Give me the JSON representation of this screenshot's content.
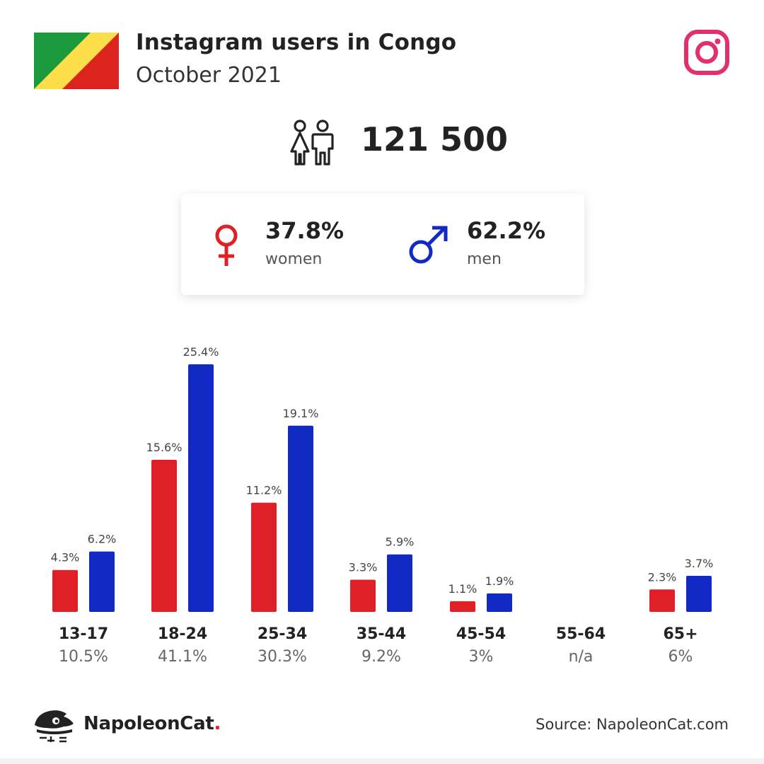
{
  "header": {
    "title": "Instagram users in Congo",
    "subtitle": "October 2021"
  },
  "summary": {
    "total_users": "121 500",
    "women_pct": "37.8%",
    "women_label": "women",
    "men_pct": "62.2%",
    "men_label": "men"
  },
  "colors": {
    "women": "#e02027",
    "men": "#102ac3",
    "instagram": "#e1306c",
    "flag_green": "#1a9a3c",
    "flag_yellow": "#fbde4a",
    "flag_red": "#dc241f"
  },
  "chart_data": {
    "type": "bar",
    "categories": [
      "13-17",
      "18-24",
      "25-34",
      "35-44",
      "45-54",
      "55-64",
      "65+"
    ],
    "category_totals": [
      "10.5%",
      "41.1%",
      "30.3%",
      "9.2%",
      "3%",
      "n/a",
      "6%"
    ],
    "series": [
      {
        "name": "women",
        "values": [
          4.3,
          15.6,
          11.2,
          3.3,
          1.1,
          null,
          2.3
        ],
        "labels": [
          "4.3%",
          "15.6%",
          "11.2%",
          "3.3%",
          "1.1%",
          "",
          "2.3%"
        ],
        "color": "#e02027"
      },
      {
        "name": "men",
        "values": [
          6.2,
          25.4,
          19.1,
          5.9,
          1.9,
          null,
          3.7
        ],
        "labels": [
          "6.2%",
          "25.4%",
          "19.1%",
          "5.9%",
          "1.9%",
          "",
          "3.7%"
        ],
        "color": "#102ac3"
      }
    ],
    "ylim": [
      0,
      25.4
    ],
    "grid": false
  },
  "footer": {
    "brand_name": "NapoleonCat",
    "brand_dot": ".",
    "source": "Source: NapoleonCat.com"
  },
  "icons": {
    "flag": "congo-flag-icon",
    "instagram": "instagram-icon",
    "people": "people-icon",
    "female": "female-symbol-icon",
    "male": "male-symbol-icon",
    "logo": "napoleoncat-logo-icon"
  }
}
